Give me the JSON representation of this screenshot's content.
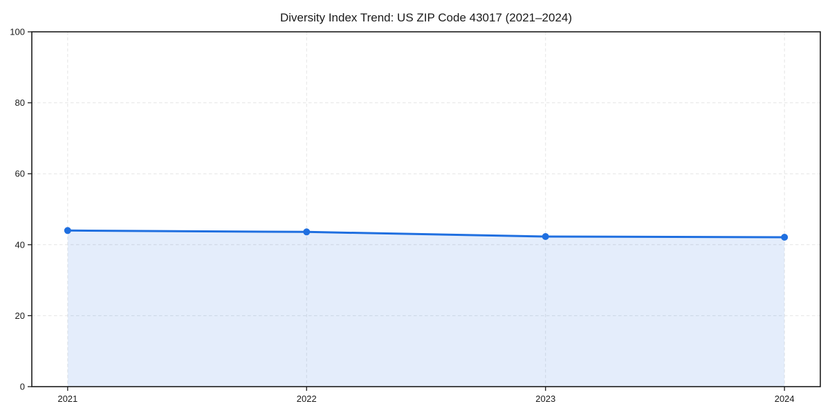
{
  "chart_data": {
    "type": "area",
    "title": "Diversity Index Trend: US ZIP Code 43017 (2021–2024)",
    "categories": [
      "2021",
      "2022",
      "2023",
      "2024"
    ],
    "x": [
      2021,
      2022,
      2023,
      2024
    ],
    "series": [
      {
        "name": "Diversity Index",
        "values": [
          44.0,
          43.6,
          42.3,
          42.1
        ]
      }
    ],
    "xlabel": "",
    "ylabel": "",
    "xlim": [
      2020.85,
      2024.15
    ],
    "ylim": [
      0,
      100
    ],
    "y_ticks": [
      0,
      20,
      40,
      60,
      80,
      100
    ],
    "x_ticks": [
      2021,
      2022,
      2023,
      2024
    ],
    "grid": "both",
    "grid_style": "dashed",
    "legend": "none",
    "colors": {
      "line": "#1f6fe0",
      "marker": "#1f6fe0",
      "fill": "rgba(31,111,224,0.12)",
      "grid": "#e4e4e4",
      "spine": "#1a1a1a",
      "tick_text": "#1a1a1a",
      "background": "#ffffff"
    }
  }
}
